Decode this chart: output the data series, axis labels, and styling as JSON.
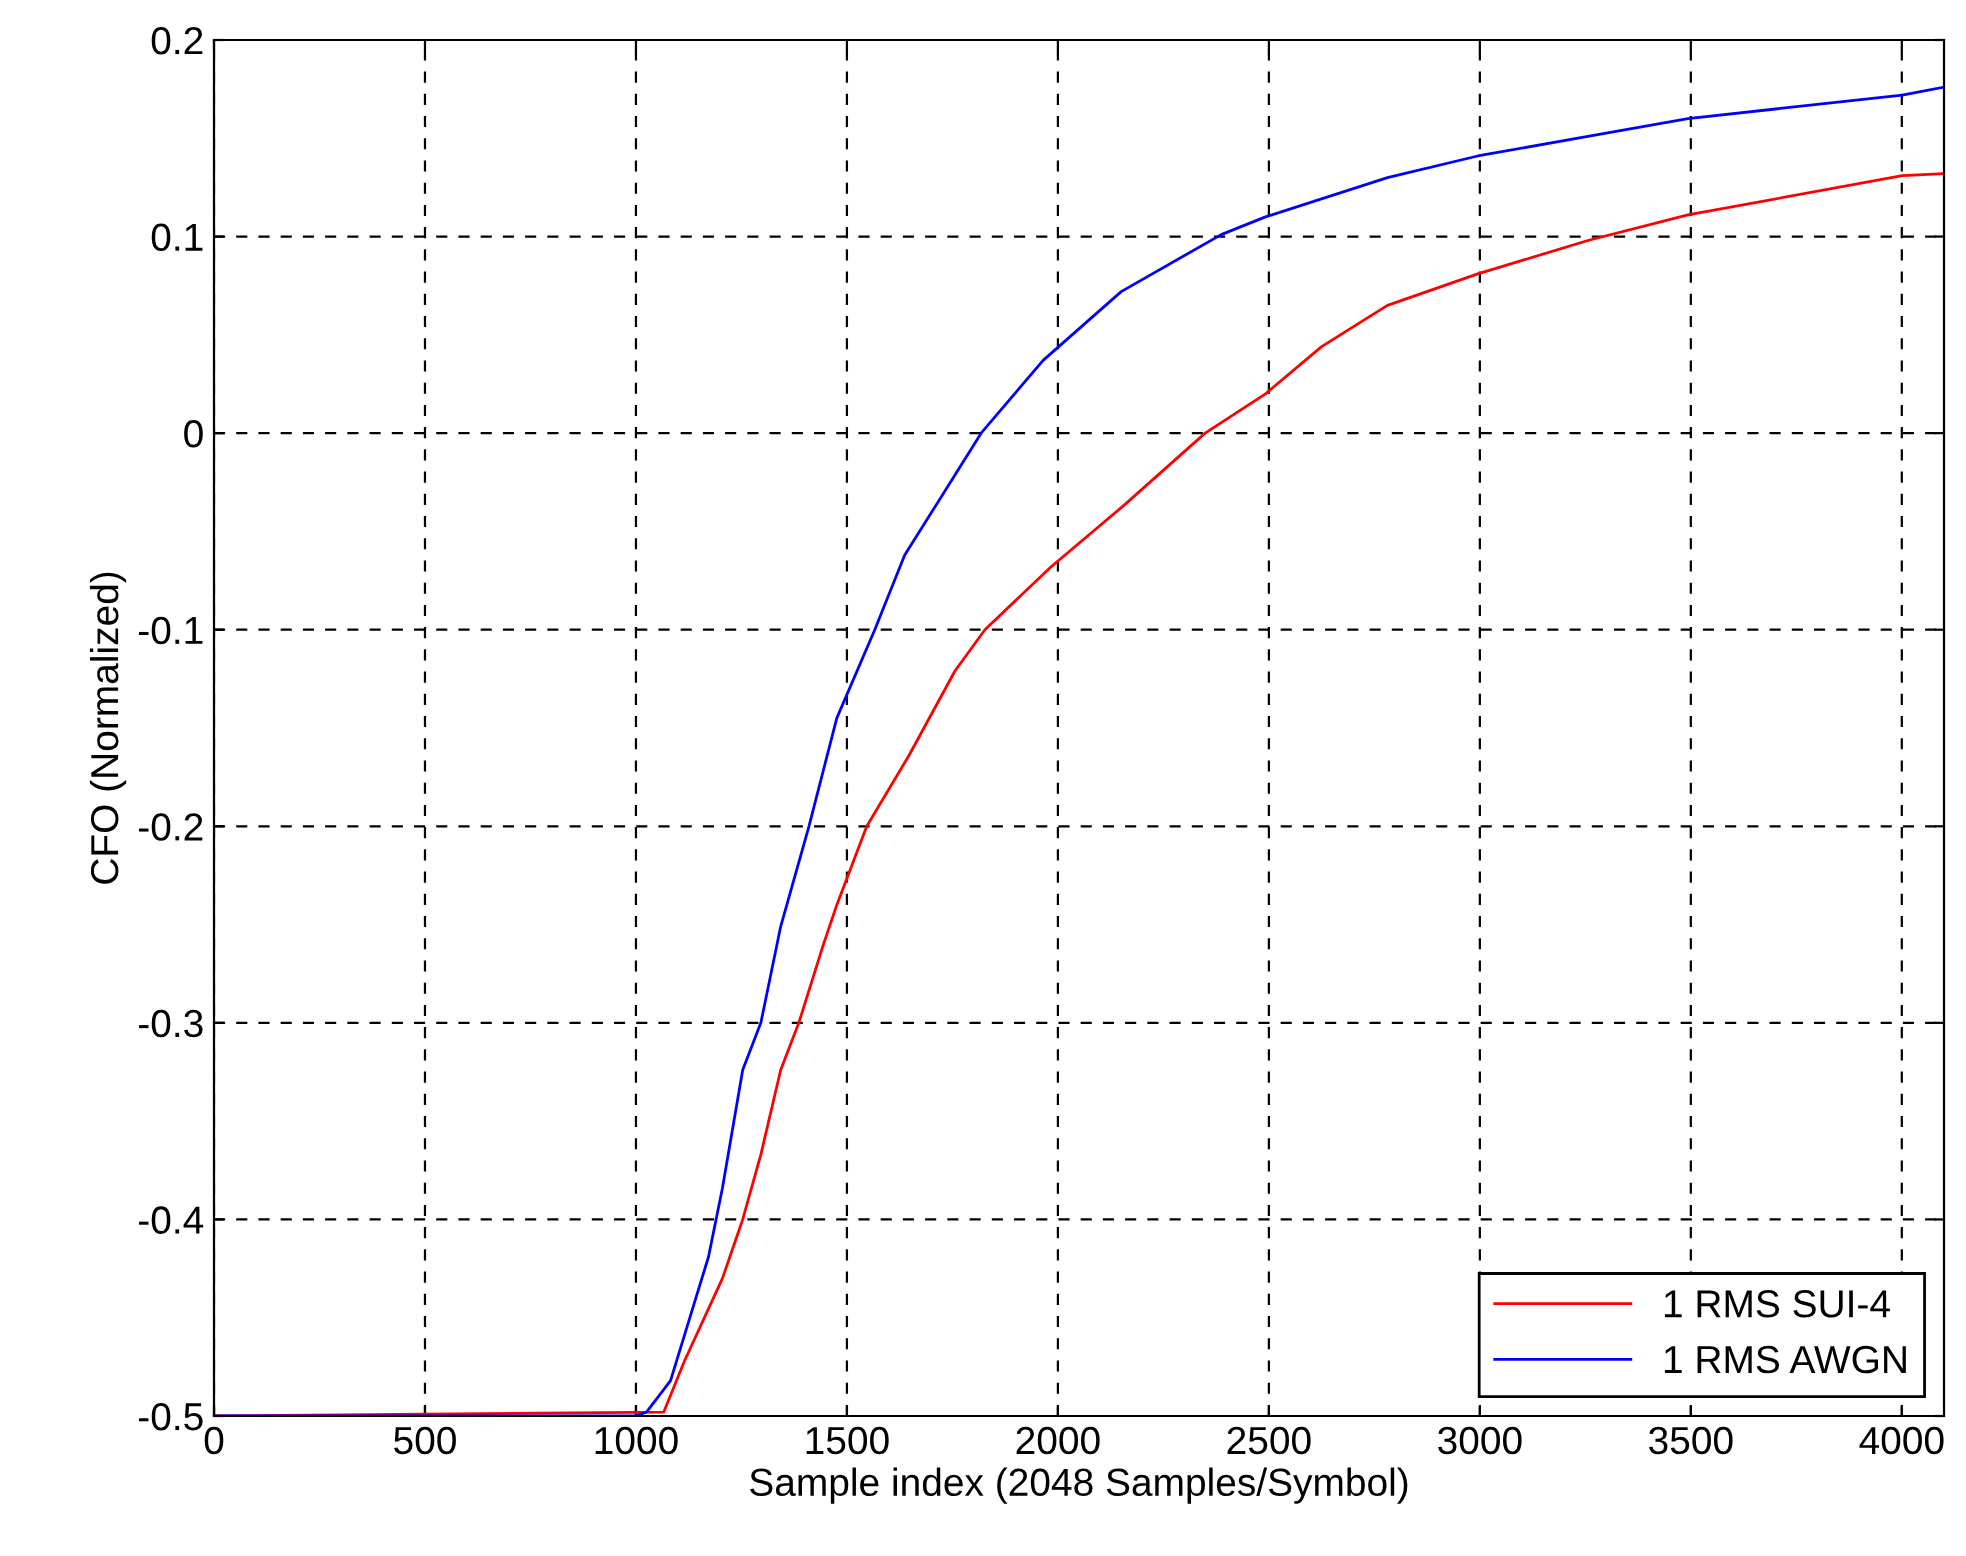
{
  "chart_data": {
    "type": "line",
    "xlabel": "Sample index (2048 Samples/Symbol)",
    "ylabel": "CFO (Normalized)",
    "xlim": [
      0,
      4100
    ],
    "xticks": [
      0,
      500,
      1000,
      1500,
      2000,
      2500,
      3000,
      3500,
      4000
    ],
    "ylim": [
      -0.5,
      0.2
    ],
    "yticks": [
      -0.5,
      -0.4,
      -0.3,
      -0.2,
      -0.1,
      0,
      0.1,
      0.2
    ],
    "grid": true,
    "legend": "bottom right",
    "line_style": "solid",
    "marker": "none",
    "series": [
      {
        "name": "1 RMS SUI-4",
        "color": "#ff0000",
        "x": [
          0,
          1066,
          1115,
          1205,
          1253,
          1296,
          1343,
          1386,
          1443,
          1476,
          1547,
          1647,
          1756,
          1827,
          1984,
          2155,
          2349,
          2492,
          2625,
          2781,
          2995,
          3256,
          3493,
          4001,
          4100
        ],
        "values": [
          -0.5,
          -0.498,
          -0.472,
          -0.43,
          -0.4,
          -0.367,
          -0.324,
          -0.3,
          -0.261,
          -0.24,
          -0.2,
          -0.164,
          -0.121,
          -0.1,
          -0.068,
          -0.037,
          0,
          0.02,
          0.044,
          0.065,
          0.081,
          0.098,
          0.111,
          0.131,
          0.132
        ]
      },
      {
        "name": "1 RMS AWGN",
        "color": "#0000ff",
        "x": [
          0,
          500,
          1000,
          1025,
          1082,
          1172,
          1205,
          1253,
          1296,
          1343,
          1410,
          1476,
          1566,
          1637,
          1713,
          1818,
          1965,
          2150,
          2387,
          2492,
          2781,
          2995,
          3256,
          3493,
          4001,
          4100
        ],
        "values": [
          -0.5,
          -0.5,
          -0.5,
          -0.498,
          -0.482,
          -0.419,
          -0.384,
          -0.324,
          -0.3,
          -0.251,
          -0.2,
          -0.145,
          -0.1,
          -0.062,
          -0.036,
          0,
          0.037,
          0.072,
          0.101,
          0.11,
          0.13,
          0.141,
          0.151,
          0.16,
          0.172,
          0.176
        ]
      }
    ]
  }
}
